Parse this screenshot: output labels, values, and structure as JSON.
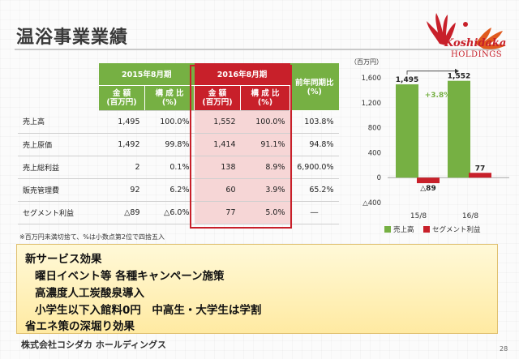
{
  "title": "温浴事業業績",
  "logo": {
    "name": "Koshidaka",
    "sub": "HOLDINGS"
  },
  "table": {
    "period_prev": "2015年8月期",
    "period_curr": "2016年8月期",
    "col_amount": "金 額",
    "col_amount_unit": "(百万円)",
    "col_ratio": "構 成 比",
    "col_ratio_unit": "(%)",
    "col_yoy": "前年同期比",
    "col_yoy_unit": "(%)",
    "rows": [
      {
        "label": "売上高",
        "prev_amount": "1,495",
        "prev_ratio": "100.0%",
        "curr_amount": "1,552",
        "curr_ratio": "100.0%",
        "yoy": "103.8%"
      },
      {
        "label": "売上原価",
        "prev_amount": "1,492",
        "prev_ratio": "99.8%",
        "curr_amount": "1,414",
        "curr_ratio": "91.1%",
        "yoy": "94.8%"
      },
      {
        "label": "売上総利益",
        "prev_amount": "2",
        "prev_ratio": "0.1%",
        "curr_amount": "138",
        "curr_ratio": "8.9%",
        "yoy": "6,900.0%"
      },
      {
        "label": "販売管理費",
        "prev_amount": "92",
        "prev_ratio": "6.2%",
        "curr_amount": "60",
        "curr_ratio": "3.9%",
        "yoy": "65.2%"
      },
      {
        "label": "セグメント利益",
        "prev_amount": "△89",
        "prev_ratio": "△6.0%",
        "curr_amount": "77",
        "curr_ratio": "5.0%",
        "yoy": "―"
      }
    ]
  },
  "note": "※百万円未満切捨て、%は小数点第2位で四捨五入",
  "chart_data": {
    "type": "bar",
    "unit": "（百万円）",
    "categories": [
      "15/8",
      "16/8"
    ],
    "series": [
      {
        "name": "売上高",
        "values": [
          1495,
          1552
        ],
        "labels": [
          "1,495",
          "1,552"
        ],
        "color": "#76b043"
      },
      {
        "name": "セグメント利益",
        "values": [
          -89,
          77
        ],
        "labels": [
          "△89",
          "77"
        ],
        "color": "#c8202a"
      }
    ],
    "yticks": [
      1600,
      1200,
      800,
      400,
      0,
      -400
    ],
    "ytick_labels": [
      "1,600",
      "1,200",
      "800",
      "400",
      "0",
      "△400"
    ],
    "ylim": [
      -400,
      1600
    ],
    "annotation": "+3.8%"
  },
  "effect": {
    "heading": "新サービス効果",
    "items": [
      "曜日イベント等 各種キャンペーン施策",
      "高濃度人工炭酸泉導入",
      "小学生以下入館料0円　中高生・大学生は学割"
    ],
    "closing": "省エネ策の深堀り効果"
  },
  "footer": "株式会社コシダカ ホールディングス",
  "page": "28"
}
